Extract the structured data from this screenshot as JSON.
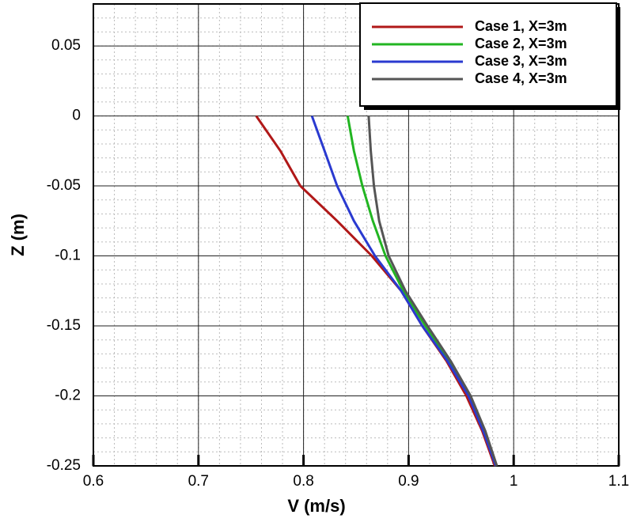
{
  "chart_data": {
    "type": "line",
    "x_label": "V (m/s)",
    "y_label": "Z (m)",
    "y": [
      0,
      -0.025,
      -0.05,
      -0.075,
      -0.1,
      -0.125,
      -0.15,
      -0.175,
      -0.2,
      -0.225,
      -0.25
    ],
    "series": [
      {
        "name": "Case 1, X=3m",
        "color": "#b01818",
        "x": [
          0.755,
          0.778,
          0.797,
          0.832,
          0.865,
          0.893,
          0.913,
          0.936,
          0.955,
          0.97,
          0.982
        ]
      },
      {
        "name": "Case 2, X=3m",
        "color": "#22b522",
        "x": [
          0.842,
          0.848,
          0.856,
          0.866,
          0.878,
          0.895,
          0.916,
          0.939,
          0.958,
          0.972,
          0.983
        ]
      },
      {
        "name": "Case 3, X=3m",
        "color": "#2a3ad0",
        "x": [
          0.808,
          0.82,
          0.832,
          0.848,
          0.868,
          0.893,
          0.913,
          0.937,
          0.957,
          0.971,
          0.983
        ]
      },
      {
        "name": "Case 4, X=3m",
        "color": "#555555",
        "x": [
          0.862,
          0.864,
          0.867,
          0.872,
          0.881,
          0.897,
          0.918,
          0.94,
          0.959,
          0.973,
          0.984
        ]
      }
    ],
    "xlim": [
      0.6,
      1.1
    ],
    "xticks": [
      0.6,
      0.7,
      0.8,
      0.9,
      1,
      1.1
    ],
    "ylim": [
      -0.25,
      0.08
    ],
    "yticks": [
      -0.25,
      -0.2,
      -0.15,
      -0.1,
      -0.05,
      0,
      0.05
    ],
    "grid": true,
    "minor_grid": true,
    "legend": "upper right"
  }
}
